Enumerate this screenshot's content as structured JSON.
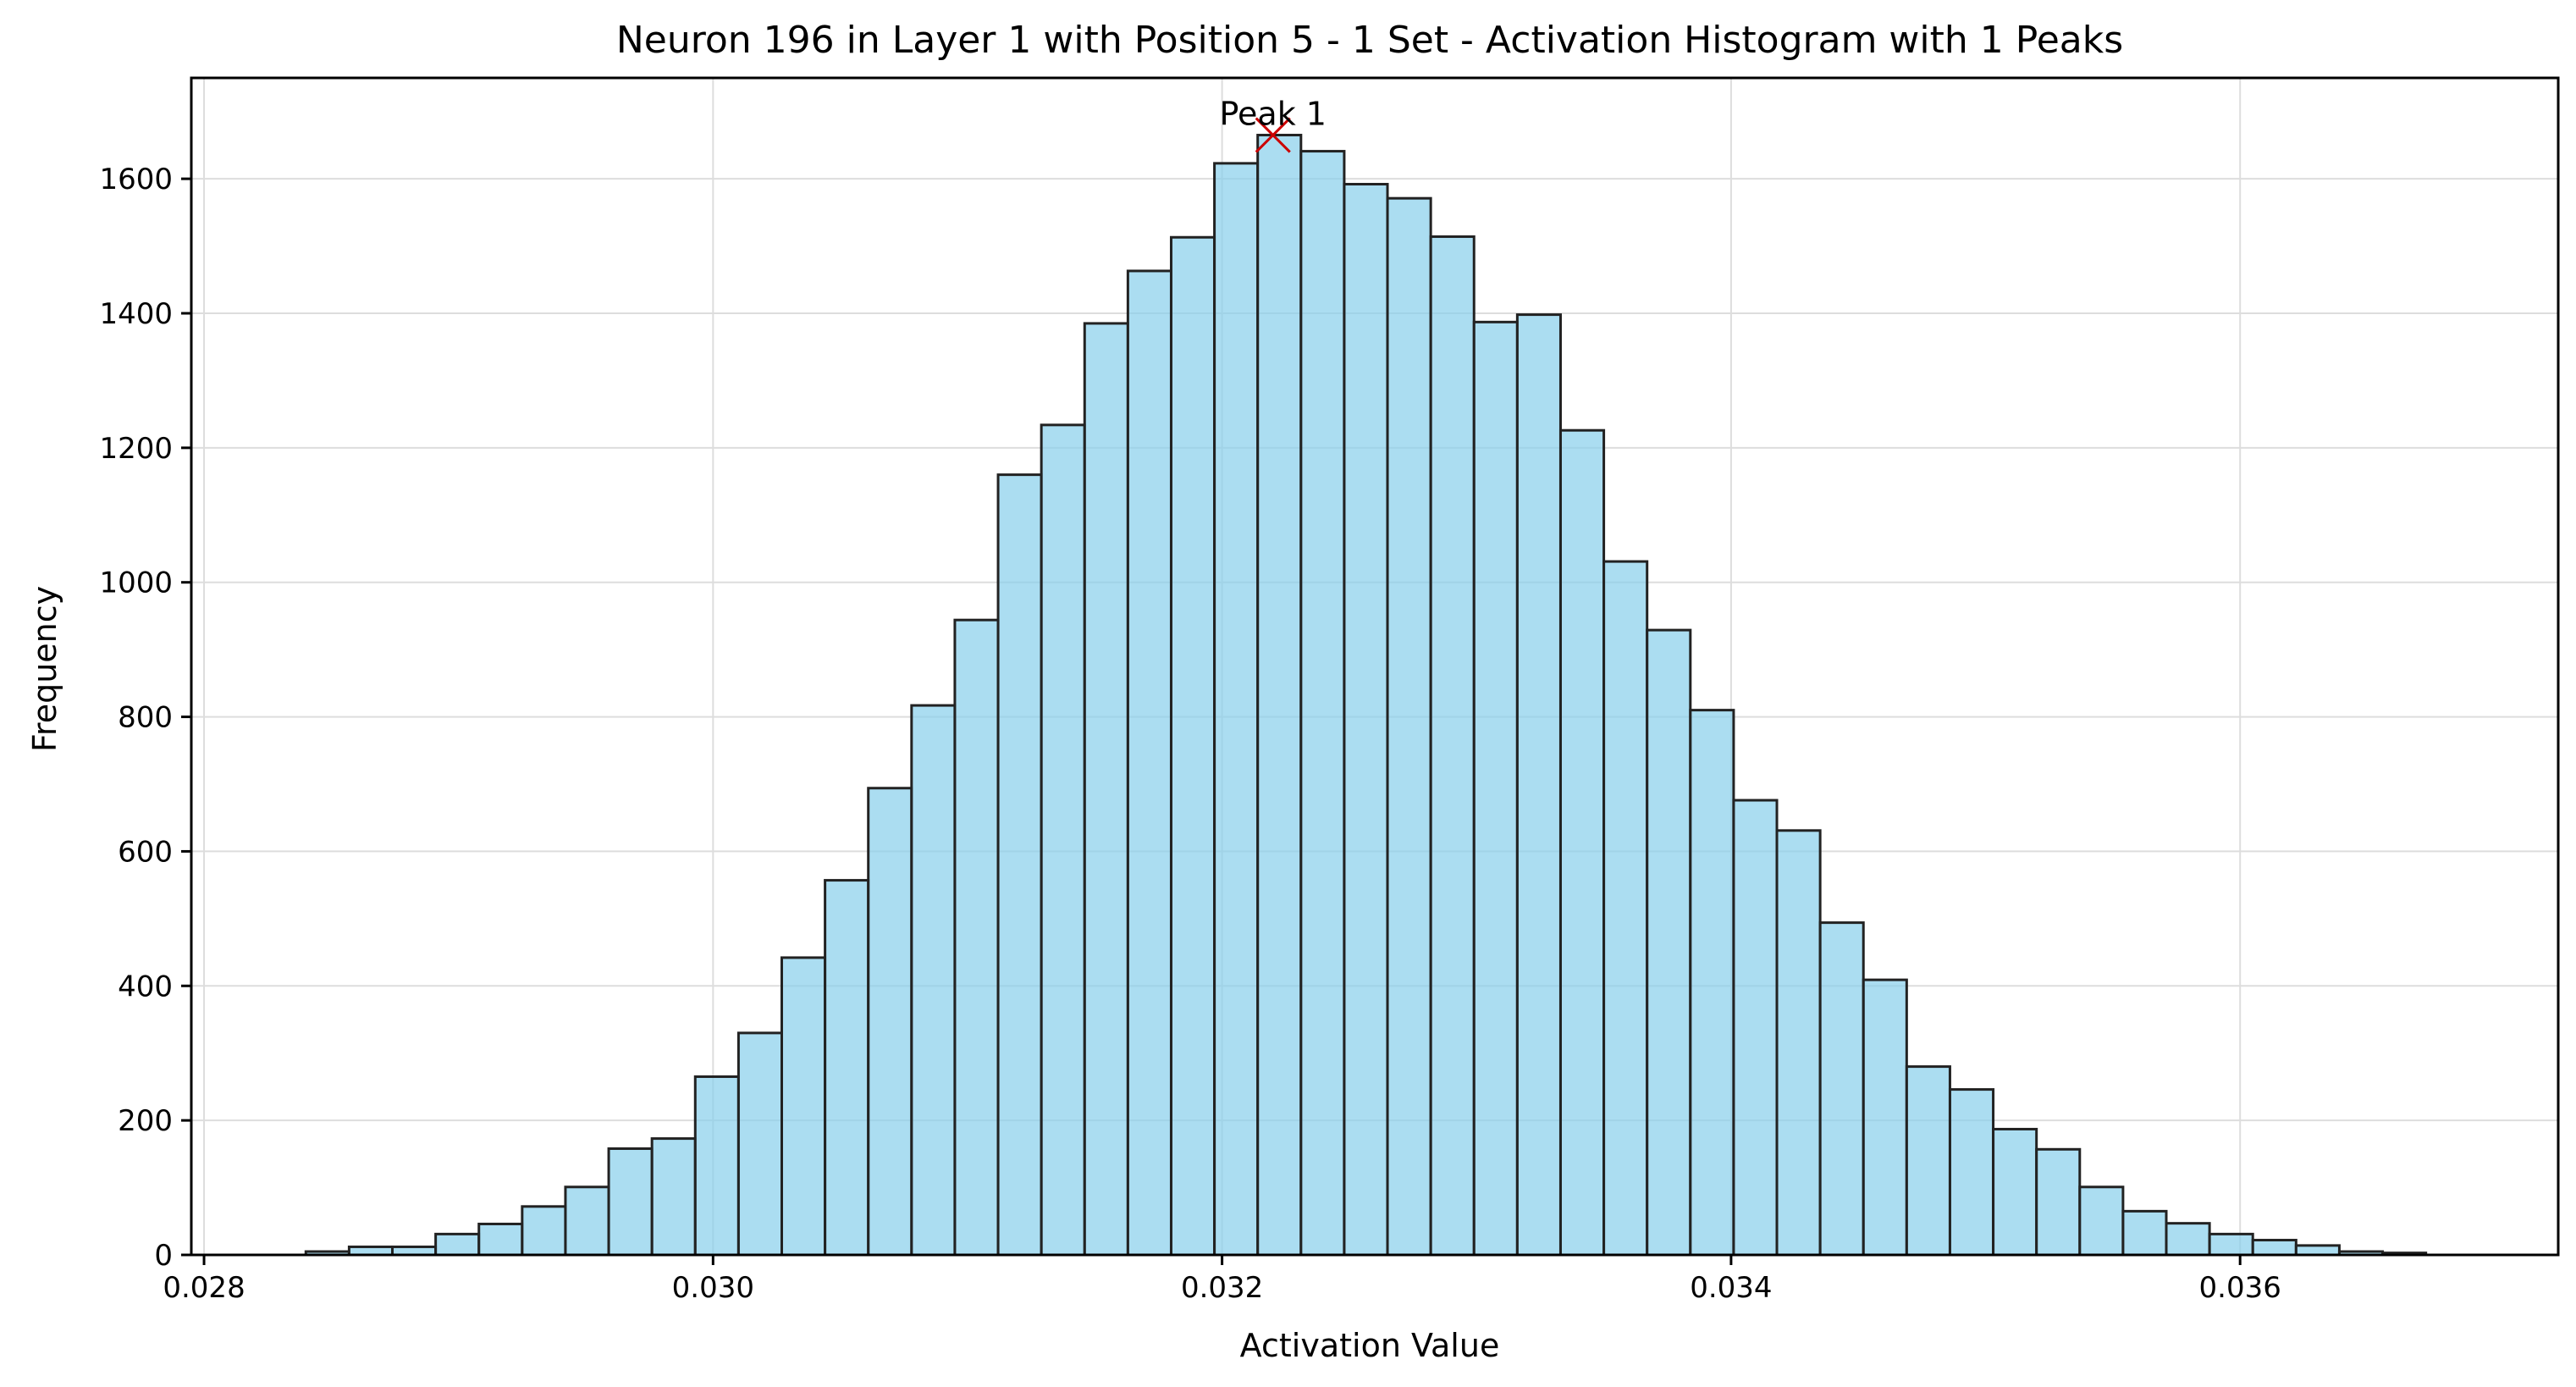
{
  "chart_data": {
    "type": "bar",
    "title": "Neuron 196 in Layer 1 with Position 5 - 1 Set - Activation Histogram with 1 Peaks",
    "xlabel": "Activation Value",
    "ylabel": "Frequency",
    "xlim": [
      0.02795,
      0.03725
    ],
    "ylim": [
      0,
      1750
    ],
    "xticks": [
      {
        "value": 0.028,
        "label": "0.028"
      },
      {
        "value": 0.03,
        "label": "0.030"
      },
      {
        "value": 0.032,
        "label": "0.032"
      },
      {
        "value": 0.034,
        "label": "0.034"
      },
      {
        "value": 0.036,
        "label": "0.036"
      }
    ],
    "yticks": [
      {
        "value": 0,
        "label": "0"
      },
      {
        "value": 200,
        "label": "200"
      },
      {
        "value": 400,
        "label": "400"
      },
      {
        "value": 600,
        "label": "600"
      },
      {
        "value": 800,
        "label": "800"
      },
      {
        "value": 1000,
        "label": "1000"
      },
      {
        "value": 1200,
        "label": "1200"
      },
      {
        "value": 1400,
        "label": "1400"
      },
      {
        "value": 1600,
        "label": "1600"
      }
    ],
    "grid": true,
    "bin_start": 0.0284,
    "bin_width": 0.00017,
    "values": [
      5,
      12,
      12,
      31,
      46,
      72,
      101,
      158,
      173,
      265,
      330,
      442,
      557,
      694,
      817,
      944,
      1160,
      1234,
      1385,
      1463,
      1513,
      1623,
      1665,
      1641,
      1592,
      1571,
      1514,
      1387,
      1398,
      1226,
      1031,
      929,
      810,
      676,
      631,
      494,
      409,
      280,
      246,
      187,
      157,
      101,
      65,
      47,
      31,
      22,
      14,
      5,
      3
    ],
    "bar_color": "#87CEEB",
    "bar_edge_color": "#222222",
    "peaks": [
      {
        "label": "Peak 1",
        "x": 0.0322,
        "y": 1665,
        "color": "#cc0000"
      }
    ]
  }
}
